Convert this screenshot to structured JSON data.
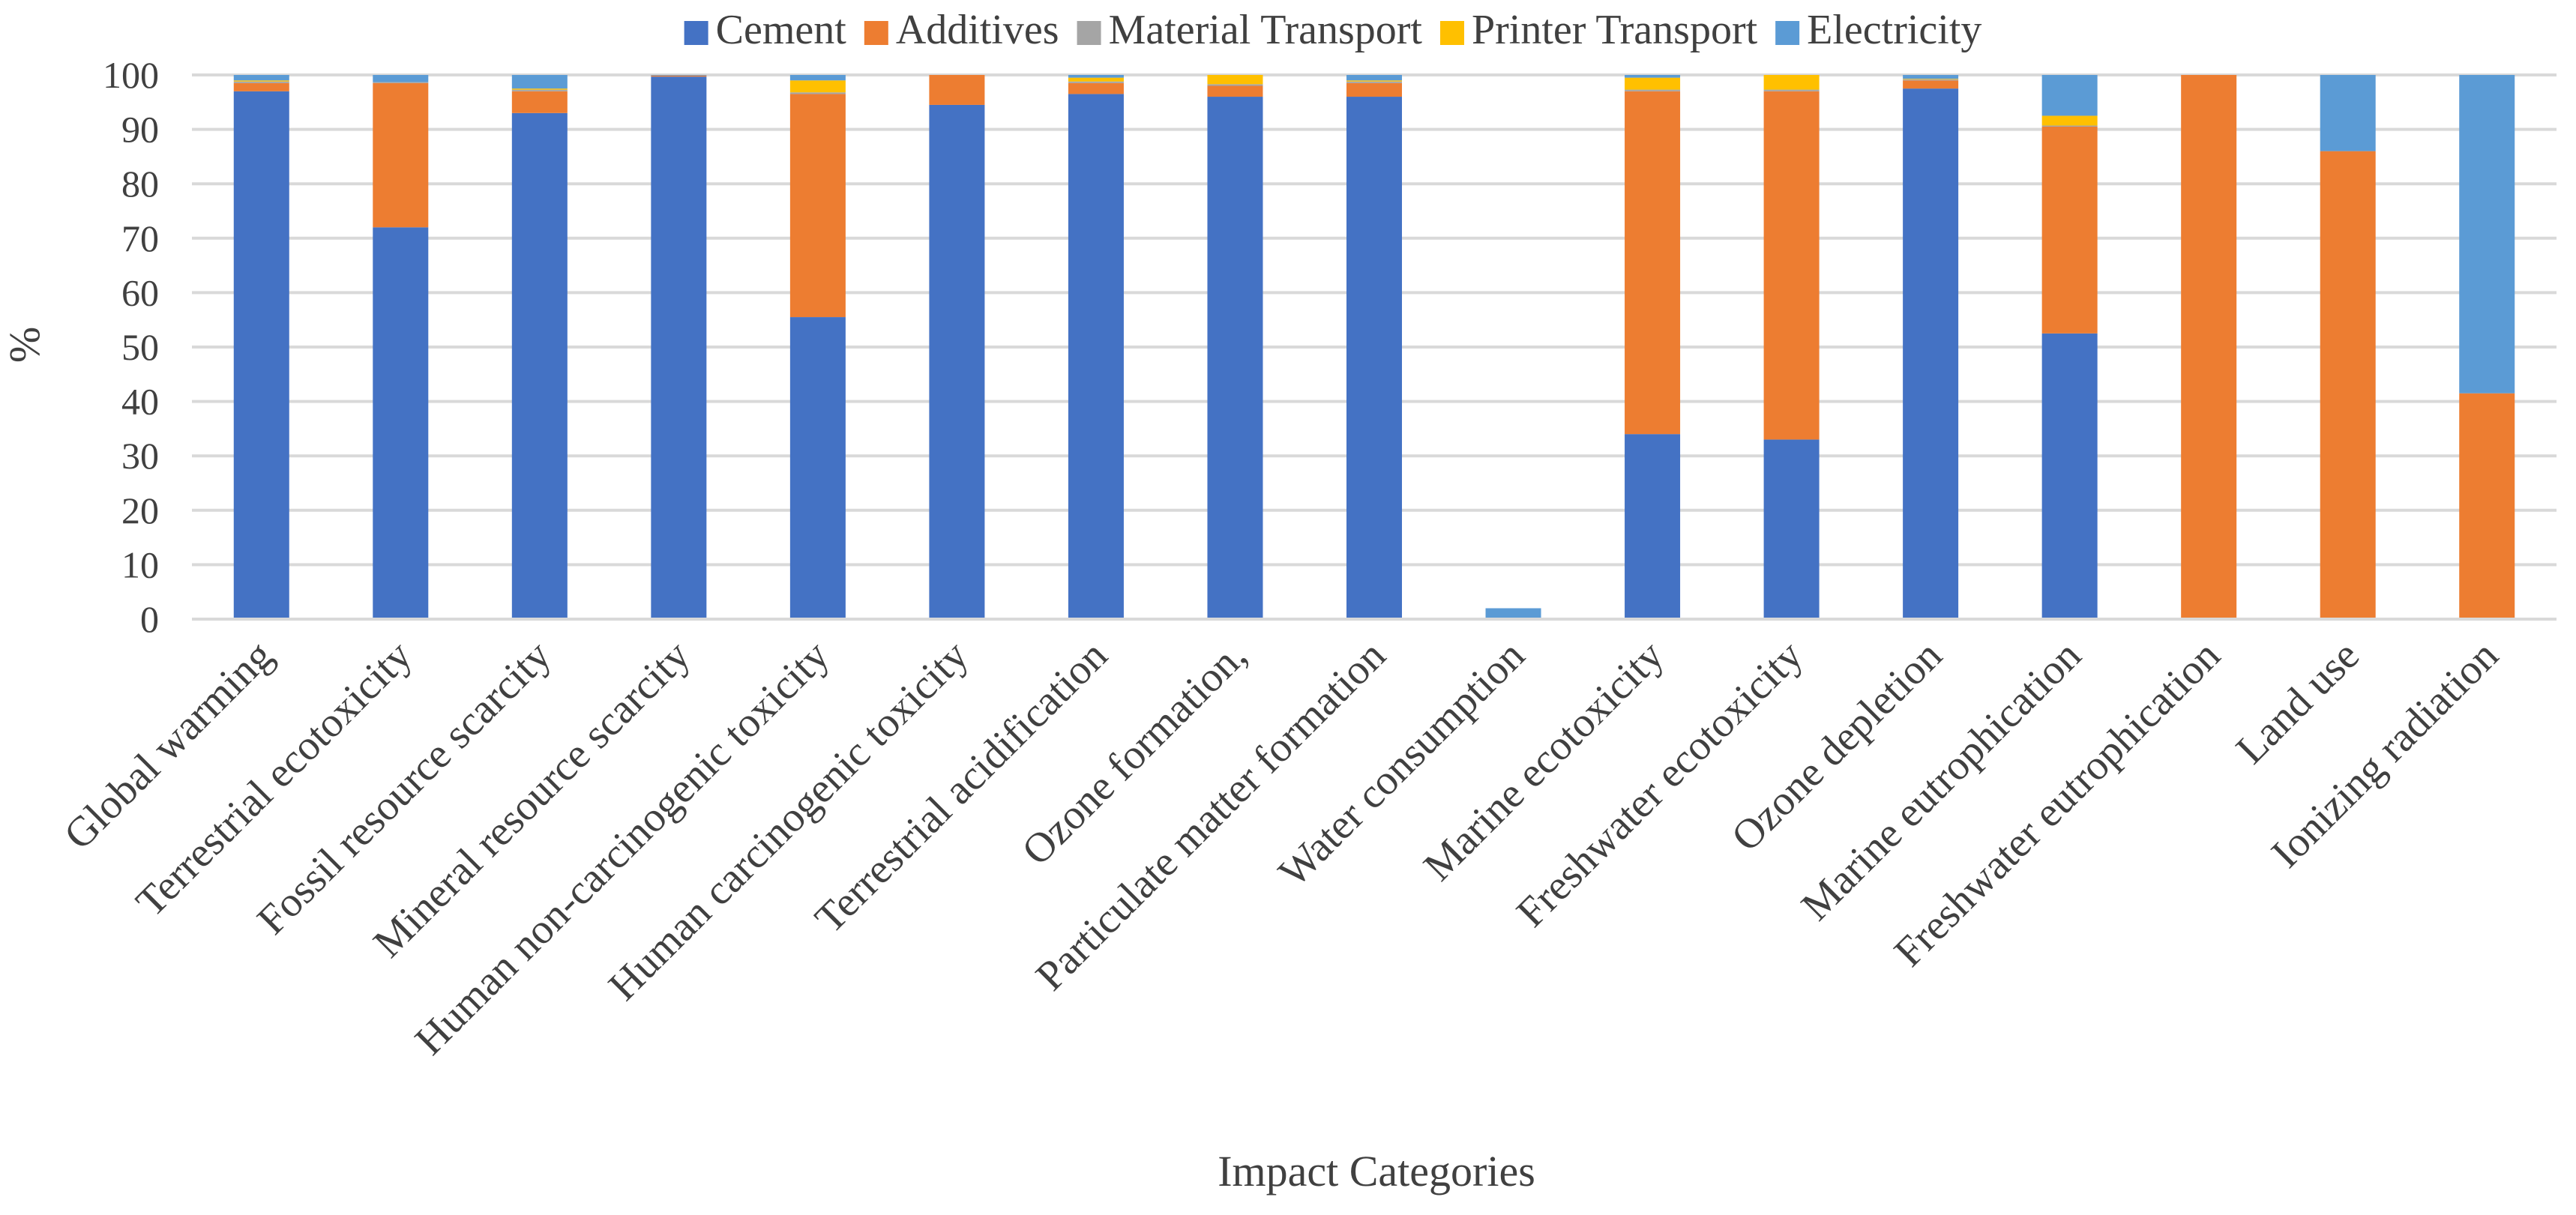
{
  "chart_data": {
    "type": "bar",
    "stacked": true,
    "title": "",
    "xlabel": "Impact Categories",
    "ylabel": "%",
    "ylim": [
      0,
      100
    ],
    "yticks": [
      "0",
      "10",
      "20",
      "30",
      "40",
      "50",
      "60",
      "70",
      "80",
      "90",
      "100"
    ],
    "grid": true,
    "legend_position": "top",
    "categories": [
      "Global warming",
      "Terrestrial ecotoxicity",
      "Fossil resource scarcity",
      "Mineral resource scarcity",
      "Human non-carcinogenic toxicity",
      "Human carcinogenic toxicity",
      "Terrestrial acidification",
      "Ozone formation,",
      "Particulate matter formation",
      "Water consumption",
      "Marine ecotoxicity",
      "Freshwater ecotoxicity",
      "Ozone depletion",
      "Marine eutrophication",
      "Freshwater eutrophication",
      "Land use",
      "Ionizing radiation"
    ],
    "series": [
      {
        "name": "Cement",
        "color": "#4472c4",
        "values": [
          97,
          72,
          93,
          99.7,
          55.5,
          94.5,
          96.5,
          96,
          96,
          0,
          34,
          33,
          97.5,
          52.5,
          0,
          0,
          0
        ]
      },
      {
        "name": "Additives",
        "color": "#ed7d31",
        "values": [
          1.5,
          26.5,
          4,
          0.2,
          41,
          5.5,
          2,
          2,
          2.5,
          0,
          63,
          64,
          1.5,
          38,
          100,
          86,
          41.5
        ]
      },
      {
        "name": "Material Transport",
        "color": "#a5a5a5",
        "values": [
          0.3,
          0.2,
          0.3,
          0,
          0.3,
          0,
          0.3,
          0.3,
          0.3,
          0,
          0.3,
          0.3,
          0.2,
          0.2,
          0,
          0,
          0
        ]
      },
      {
        "name": "Printer Transport",
        "color": "#ffc000",
        "values": [
          0.2,
          0,
          0.2,
          0,
          2.2,
          0,
          0.7,
          1.7,
          0.2,
          0,
          2.2,
          2.7,
          0.1,
          1.8,
          0,
          0,
          0
        ]
      },
      {
        "name": "Electricity",
        "color": "#5b9bd5",
        "values": [
          1,
          1.3,
          2.5,
          0.1,
          1,
          0,
          0.5,
          0,
          1,
          2,
          0.5,
          0,
          0.7,
          7.5,
          0,
          14,
          58.5
        ]
      }
    ]
  }
}
